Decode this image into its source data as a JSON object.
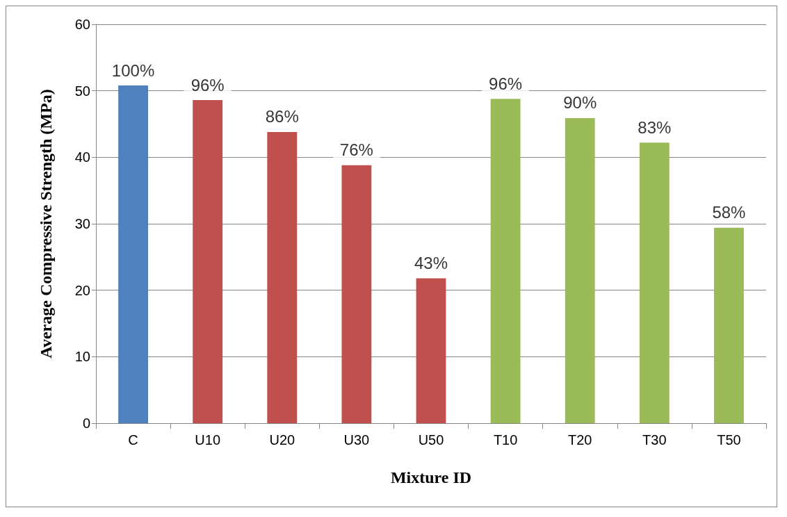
{
  "chart_data": {
    "type": "bar",
    "xlabel": "Mixture ID",
    "ylabel": "Average Compressive Strength (MPa)",
    "categories": [
      "C",
      "U10",
      "U20",
      "U30",
      "U50",
      "T10",
      "T20",
      "T30",
      "T50"
    ],
    "values": [
      50.8,
      48.6,
      43.8,
      38.8,
      21.8,
      48.8,
      45.9,
      42.2,
      29.4
    ],
    "colors": [
      "#4f81bd",
      "#c0504d",
      "#c0504d",
      "#c0504d",
      "#c0504d",
      "#9bbb59",
      "#9bbb59",
      "#9bbb59",
      "#9bbb59"
    ],
    "annotations": [
      {
        "text": "100%",
        "x": "C",
        "y": 50.8
      },
      {
        "text": "96%",
        "x": "U10",
        "y": 48.6
      },
      {
        "text": "86%",
        "x": "U20",
        "y": 43.8
      },
      {
        "text": "76%",
        "x": "U30",
        "y": 38.8
      },
      {
        "text": "43%",
        "x": "U50",
        "y": 21.8
      },
      {
        "text": "96%",
        "x": "T10",
        "y": 48.8
      },
      {
        "text": "90%",
        "x": "T20",
        "y": 45.9
      },
      {
        "text": "83%",
        "x": "T30",
        "y": 42.2
      },
      {
        "text": "58%",
        "x": "T50",
        "y": 29.4
      }
    ],
    "ylim": [
      0,
      60
    ],
    "yticks": [
      0,
      10,
      20,
      30,
      40,
      50,
      60
    ],
    "grid": "y"
  }
}
